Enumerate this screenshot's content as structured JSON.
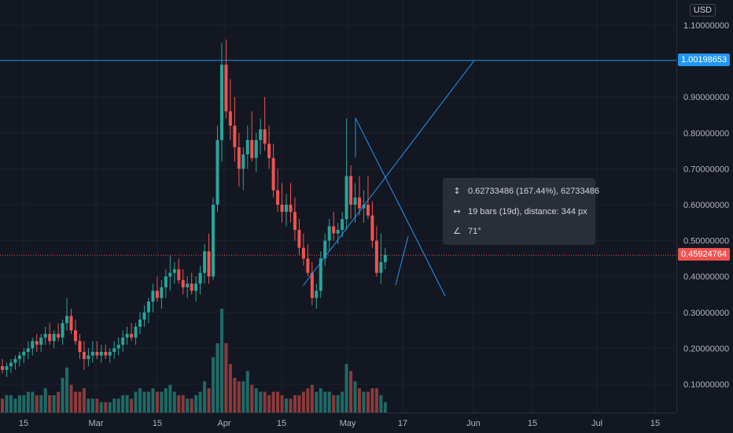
{
  "currency": "USD",
  "colors": {
    "background": "#131722",
    "up": "#26a69a",
    "down": "#ef5350",
    "volume_up": "#1e6b66",
    "volume_down": "#8b3a3a",
    "drawing": "#2196f3",
    "current_price_line": "#ef5350",
    "axis_text": "#b2b5be"
  },
  "price_axis": {
    "ticks": [
      "1.10000000",
      "0.90000000",
      "0.80000000",
      "0.70000000",
      "0.60000000",
      "0.50000000",
      "0.40000000",
      "0.30000000",
      "0.20000000",
      "0.10000000"
    ],
    "horizontal_line_label": "1.00198653",
    "current_price_label": "0.45924764"
  },
  "time_axis": {
    "labels": [
      "15",
      "Mar",
      "15",
      "Apr",
      "15",
      "May",
      "17",
      "Jun",
      "15",
      "Jul",
      "15"
    ]
  },
  "measure_tooltip": {
    "price_range": "0.62733486 (167.44%), 62733486",
    "bars_range": "19 bars (19d), distance: 344 px",
    "angle": "71°"
  },
  "chart_data": {
    "type": "candlestick",
    "x_start": "2021-02-02",
    "x_end": "2021-07-24",
    "ylim": [
      0.0,
      1.14
    ],
    "grid": true,
    "horizontal_line": 1.00198653,
    "current_price": 0.45924764,
    "candles": [
      [
        0.15,
        0.17,
        0.13,
        0.14,
        0.04
      ],
      [
        0.14,
        0.16,
        0.12,
        0.15,
        0.05
      ],
      [
        0.15,
        0.17,
        0.13,
        0.16,
        0.05
      ],
      [
        0.16,
        0.18,
        0.14,
        0.17,
        0.04
      ],
      [
        0.17,
        0.19,
        0.15,
        0.18,
        0.05
      ],
      [
        0.18,
        0.2,
        0.16,
        0.19,
        0.05
      ],
      [
        0.19,
        0.22,
        0.17,
        0.2,
        0.06
      ],
      [
        0.2,
        0.23,
        0.18,
        0.22,
        0.06
      ],
      [
        0.22,
        0.24,
        0.19,
        0.21,
        0.05
      ],
      [
        0.21,
        0.24,
        0.19,
        0.23,
        0.05
      ],
      [
        0.23,
        0.26,
        0.21,
        0.24,
        0.07
      ],
      [
        0.24,
        0.27,
        0.21,
        0.22,
        0.05
      ],
      [
        0.22,
        0.25,
        0.2,
        0.24,
        0.05
      ],
      [
        0.24,
        0.27,
        0.22,
        0.23,
        0.06
      ],
      [
        0.23,
        0.28,
        0.21,
        0.27,
        0.1
      ],
      [
        0.27,
        0.34,
        0.25,
        0.29,
        0.13
      ],
      [
        0.29,
        0.31,
        0.24,
        0.25,
        0.08
      ],
      [
        0.25,
        0.28,
        0.21,
        0.22,
        0.06
      ],
      [
        0.22,
        0.24,
        0.17,
        0.19,
        0.06
      ],
      [
        0.19,
        0.22,
        0.14,
        0.17,
        0.07
      ],
      [
        0.17,
        0.2,
        0.15,
        0.18,
        0.04
      ],
      [
        0.18,
        0.22,
        0.16,
        0.19,
        0.04
      ],
      [
        0.19,
        0.22,
        0.17,
        0.18,
        0.04
      ],
      [
        0.18,
        0.21,
        0.16,
        0.19,
        0.03
      ],
      [
        0.19,
        0.21,
        0.17,
        0.18,
        0.03
      ],
      [
        0.18,
        0.2,
        0.16,
        0.19,
        0.03
      ],
      [
        0.19,
        0.22,
        0.17,
        0.2,
        0.04
      ],
      [
        0.2,
        0.23,
        0.18,
        0.21,
        0.04
      ],
      [
        0.21,
        0.25,
        0.19,
        0.23,
        0.05
      ],
      [
        0.23,
        0.26,
        0.21,
        0.24,
        0.05
      ],
      [
        0.24,
        0.27,
        0.22,
        0.23,
        0.04
      ],
      [
        0.23,
        0.27,
        0.21,
        0.26,
        0.06
      ],
      [
        0.26,
        0.3,
        0.24,
        0.28,
        0.07
      ],
      [
        0.28,
        0.32,
        0.26,
        0.3,
        0.06
      ],
      [
        0.3,
        0.34,
        0.27,
        0.33,
        0.06
      ],
      [
        0.33,
        0.38,
        0.3,
        0.36,
        0.07
      ],
      [
        0.36,
        0.4,
        0.33,
        0.34,
        0.06
      ],
      [
        0.34,
        0.39,
        0.31,
        0.37,
        0.06
      ],
      [
        0.37,
        0.42,
        0.34,
        0.4,
        0.07
      ],
      [
        0.4,
        0.46,
        0.36,
        0.41,
        0.08
      ],
      [
        0.41,
        0.44,
        0.38,
        0.42,
        0.06
      ],
      [
        0.42,
        0.45,
        0.38,
        0.39,
        0.05
      ],
      [
        0.39,
        0.42,
        0.35,
        0.37,
        0.05
      ],
      [
        0.37,
        0.4,
        0.34,
        0.38,
        0.04
      ],
      [
        0.38,
        0.41,
        0.35,
        0.36,
        0.04
      ],
      [
        0.36,
        0.4,
        0.33,
        0.38,
        0.05
      ],
      [
        0.38,
        0.43,
        0.35,
        0.41,
        0.06
      ],
      [
        0.41,
        0.49,
        0.38,
        0.47,
        0.09
      ],
      [
        0.47,
        0.52,
        0.38,
        0.4,
        0.07
      ],
      [
        0.4,
        0.62,
        0.39,
        0.6,
        0.16
      ],
      [
        0.6,
        0.82,
        0.58,
        0.78,
        0.2
      ],
      [
        0.78,
        1.05,
        0.72,
        0.99,
        0.3
      ],
      [
        0.99,
        1.06,
        0.84,
        0.86,
        0.2
      ],
      [
        0.86,
        0.95,
        0.78,
        0.82,
        0.14
      ],
      [
        0.82,
        0.9,
        0.72,
        0.76,
        0.1
      ],
      [
        0.76,
        0.8,
        0.65,
        0.7,
        0.09
      ],
      [
        0.7,
        0.76,
        0.64,
        0.74,
        0.09
      ],
      [
        0.74,
        0.82,
        0.7,
        0.78,
        0.12
      ],
      [
        0.78,
        0.86,
        0.72,
        0.73,
        0.08
      ],
      [
        0.73,
        0.8,
        0.69,
        0.78,
        0.07
      ],
      [
        0.78,
        0.84,
        0.74,
        0.81,
        0.06
      ],
      [
        0.81,
        0.9,
        0.75,
        0.77,
        0.06
      ],
      [
        0.77,
        0.82,
        0.7,
        0.73,
        0.05
      ],
      [
        0.73,
        0.77,
        0.62,
        0.64,
        0.06
      ],
      [
        0.64,
        0.7,
        0.58,
        0.6,
        0.06
      ],
      [
        0.6,
        0.66,
        0.55,
        0.58,
        0.05
      ],
      [
        0.58,
        0.63,
        0.54,
        0.6,
        0.04
      ],
      [
        0.6,
        0.66,
        0.55,
        0.58,
        0.04
      ],
      [
        0.58,
        0.62,
        0.5,
        0.53,
        0.05
      ],
      [
        0.53,
        0.56,
        0.46,
        0.48,
        0.05
      ],
      [
        0.48,
        0.52,
        0.43,
        0.45,
        0.06
      ],
      [
        0.45,
        0.49,
        0.4,
        0.41,
        0.07
      ],
      [
        0.41,
        0.44,
        0.32,
        0.34,
        0.08
      ],
      [
        0.34,
        0.38,
        0.31,
        0.36,
        0.06
      ],
      [
        0.36,
        0.47,
        0.34,
        0.45,
        0.07
      ],
      [
        0.45,
        0.52,
        0.43,
        0.5,
        0.06
      ],
      [
        0.5,
        0.56,
        0.47,
        0.54,
        0.06
      ],
      [
        0.54,
        0.58,
        0.5,
        0.52,
        0.05
      ],
      [
        0.52,
        0.55,
        0.49,
        0.53,
        0.05
      ],
      [
        0.53,
        0.58,
        0.51,
        0.56,
        0.06
      ],
      [
        0.56,
        0.84,
        0.53,
        0.68,
        0.14
      ],
      [
        0.68,
        0.71,
        0.56,
        0.6,
        0.12
      ],
      [
        0.6,
        0.66,
        0.55,
        0.62,
        0.09
      ],
      [
        0.62,
        0.68,
        0.57,
        0.59,
        0.07
      ],
      [
        0.59,
        0.64,
        0.55,
        0.6,
        0.06
      ],
      [
        0.6,
        0.68,
        0.56,
        0.57,
        0.06
      ],
      [
        0.57,
        0.61,
        0.48,
        0.5,
        0.07
      ],
      [
        0.5,
        0.54,
        0.4,
        0.41,
        0.07
      ],
      [
        0.41,
        0.52,
        0.38,
        0.44,
        0.05
      ],
      [
        0.44,
        0.48,
        0.42,
        0.46,
        0.03
      ]
    ],
    "measurement": {
      "from_bar": 80,
      "to_bar": 99,
      "from_price": 0.375,
      "to_price": 1.00198653,
      "price_change": 0.62733486,
      "percent_change": 167.44,
      "bars": 19,
      "days": 19,
      "distance_px": 344,
      "angle_deg": 71
    }
  }
}
